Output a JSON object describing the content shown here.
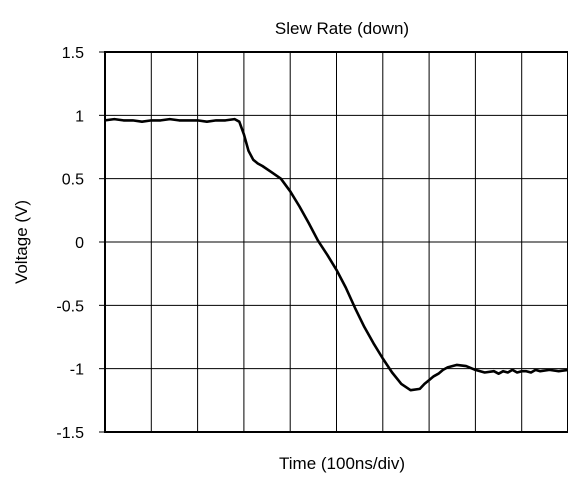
{
  "chart_data": {
    "type": "line",
    "title": "Slew Rate (down)",
    "xlabel": "Time (100ns/div)",
    "ylabel": "Voltage (V)",
    "ylim": [
      -1.5,
      1.5
    ],
    "yticks": [
      {
        "value": 1.5,
        "label": "1.5"
      },
      {
        "value": 1,
        "label": "1"
      },
      {
        "value": 0.5,
        "label": "0.5"
      },
      {
        "value": 0,
        "label": "0"
      },
      {
        "value": -0.5,
        "label": "-0.5"
      },
      {
        "value": -1,
        "label": "-1"
      },
      {
        "value": -1.5,
        "label": "-1.5"
      }
    ],
    "x_divisions": 10,
    "xlim": [
      0,
      10
    ],
    "grid": true,
    "legend": "none",
    "colors": {
      "line": "#000000",
      "grid": "#000000",
      "background": "#ffffff"
    },
    "series": [
      {
        "x": [
          0,
          0.2,
          0.4,
          0.6,
          0.8,
          1.0,
          1.2,
          1.4,
          1.6,
          1.8,
          2.0,
          2.2,
          2.4,
          2.6,
          2.8,
          2.9,
          3.0,
          3.1,
          3.2,
          3.3,
          3.4,
          3.6,
          3.8,
          4.0,
          4.2,
          4.4,
          4.6,
          4.8,
          5.0,
          5.2,
          5.4,
          5.6,
          5.8,
          6.0,
          6.2,
          6.4,
          6.6,
          6.8,
          6.9,
          7.0,
          7.1,
          7.2,
          7.3,
          7.4,
          7.6,
          7.8,
          8.0,
          8.2,
          8.4,
          8.5,
          8.6,
          8.7,
          8.8,
          8.9,
          9.0,
          9.1,
          9.2,
          9.3,
          9.4,
          9.6,
          9.8,
          10.0
        ],
        "y": [
          0.96,
          0.97,
          0.96,
          0.96,
          0.95,
          0.96,
          0.96,
          0.97,
          0.96,
          0.96,
          0.96,
          0.95,
          0.96,
          0.96,
          0.97,
          0.95,
          0.85,
          0.72,
          0.65,
          0.62,
          0.6,
          0.55,
          0.5,
          0.4,
          0.28,
          0.15,
          0.01,
          -0.1,
          -0.22,
          -0.36,
          -0.52,
          -0.67,
          -0.8,
          -0.92,
          -1.03,
          -1.12,
          -1.17,
          -1.16,
          -1.12,
          -1.09,
          -1.06,
          -1.04,
          -1.01,
          -0.99,
          -0.97,
          -0.98,
          -1.01,
          -1.03,
          -1.02,
          -1.04,
          -1.02,
          -1.03,
          -1.01,
          -1.03,
          -1.02,
          -1.02,
          -1.03,
          -1.01,
          -1.02,
          -1.01,
          -1.02,
          -1.01
        ]
      }
    ]
  }
}
